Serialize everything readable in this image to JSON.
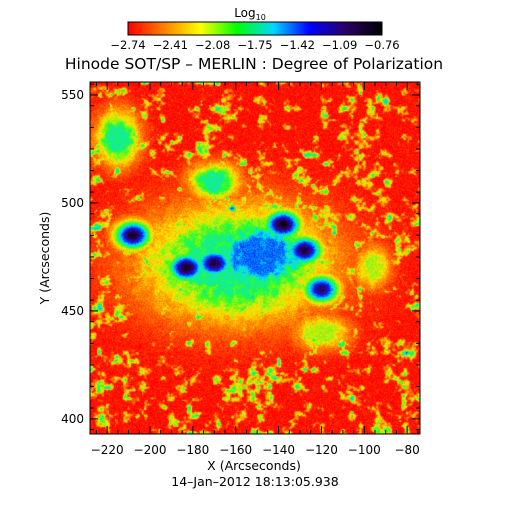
{
  "chart_data": {
    "type": "heatmap",
    "title": "Hinode SOT/SP – MERLIN : Degree of Polarization",
    "xlabel": "X (Arcseconds)",
    "ylabel": "Y (Arcseconds)",
    "footer": "14–Jan–2012 18:13:05.938",
    "xlim": [
      -228,
      -74
    ],
    "ylim": [
      393,
      556
    ],
    "x_ticks": [
      -220,
      -200,
      -180,
      -160,
      -140,
      -120,
      -100,
      -80
    ],
    "x_tick_labels": [
      "−220",
      "−200",
      "−180",
      "−160",
      "−140",
      "−120",
      "−100",
      "−80"
    ],
    "y_ticks": [
      400,
      450,
      500,
      550
    ],
    "y_tick_labels": [
      "400",
      "450",
      "500",
      "550"
    ],
    "colorbar": {
      "label_base": "Log",
      "label_sub": "10",
      "range": [
        -2.74,
        -0.76
      ],
      "ticks": [
        -2.74,
        -2.41,
        -2.08,
        -1.75,
        -1.42,
        -1.09,
        -0.76
      ],
      "tick_labels": [
        "−2.74",
        "−2.41",
        "−2.08",
        "−1.75",
        "−1.42",
        "−1.09",
        "−0.76"
      ],
      "colors": [
        "#ff0000",
        "#ff8000",
        "#ffff00",
        "#00ff00",
        "#00d8ff",
        "#0000ff",
        "#2a0066",
        "#000000"
      ]
    },
    "background_level": -2.7,
    "sunspot_cores": [
      {
        "x": -208,
        "y": 485,
        "level": -0.85
      },
      {
        "x": -183,
        "y": 470,
        "level": -0.85
      },
      {
        "x": -170,
        "y": 472,
        "level": -0.9
      },
      {
        "x": -138,
        "y": 490,
        "level": -0.8
      },
      {
        "x": -128,
        "y": 478,
        "level": -0.9
      },
      {
        "x": -120,
        "y": 460,
        "level": -1.0
      }
    ],
    "regions": [
      {
        "x": -160,
        "y": 472,
        "rx": 52,
        "ry": 32,
        "level": -1.75
      },
      {
        "x": -148,
        "y": 476,
        "rx": 30,
        "ry": 20,
        "level": -1.42
      },
      {
        "x": -215,
        "y": 530,
        "rx": 12,
        "ry": 15,
        "level": -1.75
      },
      {
        "x": -170,
        "y": 510,
        "rx": 14,
        "ry": 10,
        "level": -1.75
      },
      {
        "x": -120,
        "y": 440,
        "rx": 16,
        "ry": 10,
        "level": -2.08
      },
      {
        "x": -96,
        "y": 470,
        "rx": 10,
        "ry": 12,
        "level": -2.08
      }
    ]
  }
}
